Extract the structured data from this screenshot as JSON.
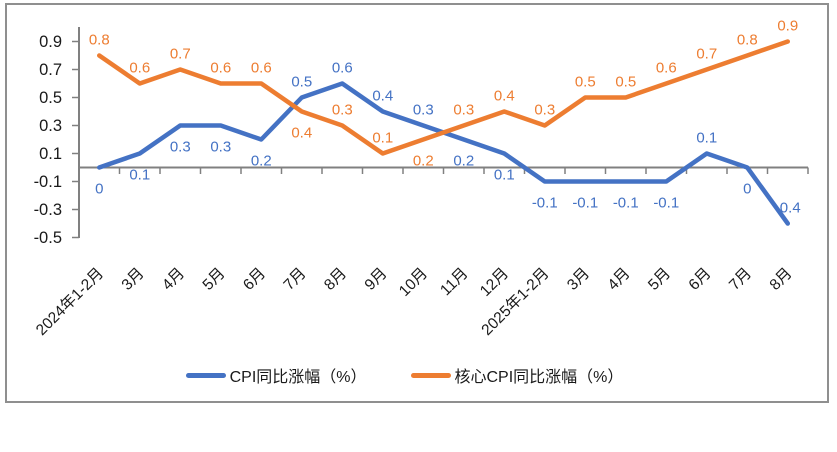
{
  "window": {
    "background": "#ffffff",
    "frame_border_color": "#8f8f8f"
  },
  "chart_data": {
    "type": "line",
    "title": "",
    "categories": [
      "2024年1-2月",
      "3月",
      "4月",
      "5月",
      "6月",
      "7月",
      "8月",
      "9月",
      "10月",
      "11月",
      "12月",
      "2025年1-2月",
      "3月",
      "4月",
      "5月",
      "6月",
      "7月",
      "8月"
    ],
    "series": [
      {
        "name": "CPI同比涨幅（%）",
        "color": "#4472C4",
        "values": [
          0,
          0.1,
          0.3,
          0.3,
          0.2,
          0.5,
          0.6,
          0.4,
          0.3,
          0.2,
          0.1,
          -0.1,
          -0.1,
          -0.1,
          -0.1,
          0.1,
          0,
          -0.4
        ],
        "label_sides": [
          "below",
          "below",
          "below",
          "below",
          "below",
          "above",
          "above",
          "above",
          "above",
          "below",
          "below",
          "below",
          "below",
          "below",
          "below",
          "above",
          "below",
          "above"
        ]
      },
      {
        "name": "核心CPI同比涨幅（%）",
        "color": "#ED7D31",
        "values": [
          0.8,
          0.6,
          0.7,
          0.6,
          0.6,
          0.4,
          0.3,
          0.1,
          0.2,
          0.3,
          0.4,
          0.3,
          0.5,
          0.5,
          0.6,
          0.7,
          0.8,
          0.9
        ],
        "label_sides": [
          "above",
          "above",
          "above",
          "above",
          "above",
          "below",
          "above",
          "above",
          "below",
          "above",
          "above",
          "above",
          "above",
          "above",
          "above",
          "above",
          "above",
          "above"
        ]
      }
    ],
    "y_axis": {
      "ticks": [
        0.9,
        0.7,
        0.5,
        0.3,
        0.1,
        -0.1,
        -0.3,
        -0.5
      ],
      "range": [
        -0.5,
        1.0
      ]
    },
    "x_axis": {
      "tick_marks": true
    },
    "grid": false,
    "legend_position": "bottom",
    "axis_color": "#808080",
    "text_color": "#1a1a1a"
  }
}
